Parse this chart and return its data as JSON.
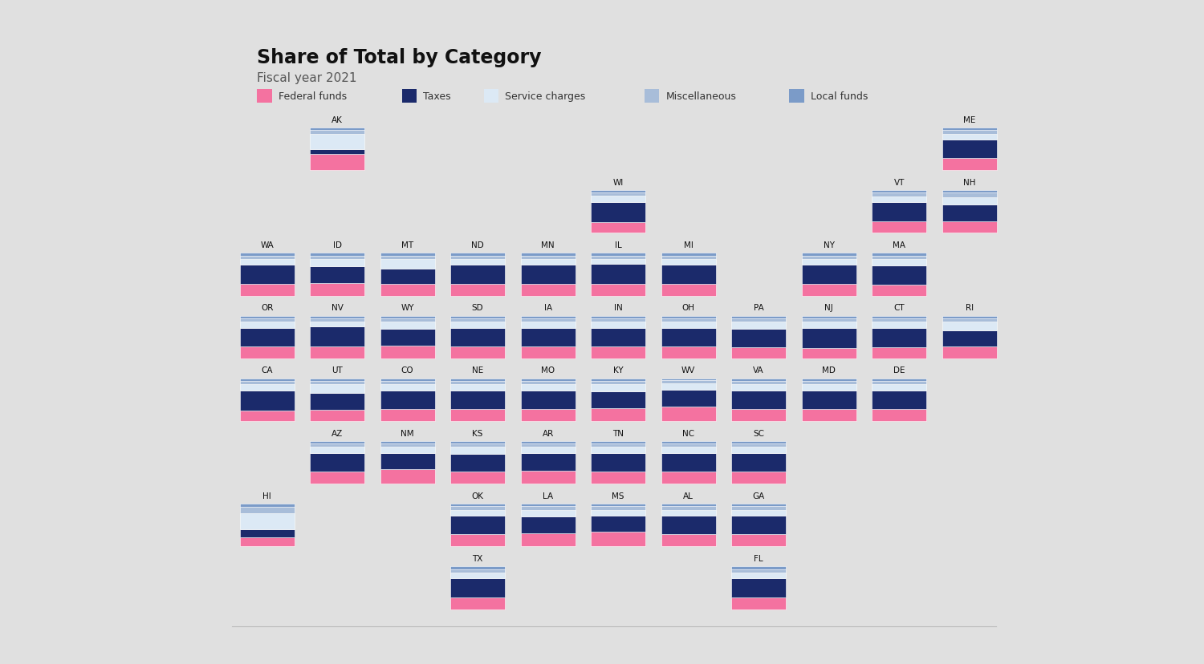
{
  "title": "Share of Total by Category",
  "subtitle": "Fiscal year 2021",
  "categories": [
    "Federal funds",
    "Taxes",
    "Service charges",
    "Miscellaneous",
    "Local funds"
  ],
  "cat_colors": [
    "#F472A0",
    "#1B2A6B",
    "#DCE9F5",
    "#A8BDD9",
    "#7B9BC8"
  ],
  "states": {
    "AK": {
      "col": 1,
      "row": 0,
      "values": [
        0.38,
        0.12,
        0.35,
        0.1,
        0.05
      ]
    },
    "ME": {
      "col": 10,
      "row": 0,
      "values": [
        0.28,
        0.44,
        0.14,
        0.08,
        0.06
      ]
    },
    "WI": {
      "col": 5,
      "row": 1,
      "values": [
        0.25,
        0.48,
        0.14,
        0.08,
        0.05
      ]
    },
    "VT": {
      "col": 9,
      "row": 1,
      "values": [
        0.28,
        0.44,
        0.14,
        0.08,
        0.06
      ]
    },
    "NH": {
      "col": 10,
      "row": 1,
      "values": [
        0.28,
        0.38,
        0.18,
        0.1,
        0.06
      ]
    },
    "WA": {
      "col": 0,
      "row": 2,
      "values": [
        0.28,
        0.44,
        0.14,
        0.08,
        0.06
      ]
    },
    "ID": {
      "col": 1,
      "row": 2,
      "values": [
        0.3,
        0.38,
        0.18,
        0.08,
        0.06
      ]
    },
    "MT": {
      "col": 2,
      "row": 2,
      "values": [
        0.28,
        0.36,
        0.22,
        0.08,
        0.06
      ]
    },
    "ND": {
      "col": 3,
      "row": 2,
      "values": [
        0.28,
        0.44,
        0.14,
        0.08,
        0.06
      ]
    },
    "MN": {
      "col": 4,
      "row": 2,
      "values": [
        0.28,
        0.44,
        0.14,
        0.08,
        0.06
      ]
    },
    "IL": {
      "col": 5,
      "row": 2,
      "values": [
        0.28,
        0.46,
        0.12,
        0.08,
        0.06
      ]
    },
    "MI": {
      "col": 6,
      "row": 2,
      "values": [
        0.28,
        0.44,
        0.14,
        0.08,
        0.06
      ]
    },
    "NY": {
      "col": 8,
      "row": 2,
      "values": [
        0.28,
        0.44,
        0.14,
        0.08,
        0.06
      ]
    },
    "MA": {
      "col": 9,
      "row": 2,
      "values": [
        0.26,
        0.44,
        0.16,
        0.08,
        0.06
      ]
    },
    "OR": {
      "col": 0,
      "row": 3,
      "values": [
        0.28,
        0.44,
        0.14,
        0.08,
        0.06
      ]
    },
    "NV": {
      "col": 1,
      "row": 3,
      "values": [
        0.28,
        0.46,
        0.12,
        0.08,
        0.06
      ]
    },
    "WY": {
      "col": 2,
      "row": 3,
      "values": [
        0.3,
        0.4,
        0.16,
        0.08,
        0.06
      ]
    },
    "SD": {
      "col": 3,
      "row": 3,
      "values": [
        0.28,
        0.44,
        0.14,
        0.08,
        0.06
      ]
    },
    "IA": {
      "col": 4,
      "row": 3,
      "values": [
        0.28,
        0.44,
        0.14,
        0.08,
        0.06
      ]
    },
    "IN": {
      "col": 5,
      "row": 3,
      "values": [
        0.28,
        0.44,
        0.14,
        0.08,
        0.06
      ]
    },
    "OH": {
      "col": 6,
      "row": 3,
      "values": [
        0.28,
        0.44,
        0.14,
        0.08,
        0.06
      ]
    },
    "PA": {
      "col": 7,
      "row": 3,
      "values": [
        0.26,
        0.44,
        0.16,
        0.08,
        0.06
      ]
    },
    "NJ": {
      "col": 8,
      "row": 3,
      "values": [
        0.24,
        0.48,
        0.14,
        0.08,
        0.06
      ]
    },
    "CT": {
      "col": 9,
      "row": 3,
      "values": [
        0.26,
        0.46,
        0.14,
        0.08,
        0.06
      ]
    },
    "RI": {
      "col": 10,
      "row": 3,
      "values": [
        0.28,
        0.38,
        0.2,
        0.08,
        0.06
      ]
    },
    "CA": {
      "col": 0,
      "row": 4,
      "values": [
        0.24,
        0.48,
        0.14,
        0.08,
        0.06
      ]
    },
    "UT": {
      "col": 1,
      "row": 4,
      "values": [
        0.26,
        0.4,
        0.2,
        0.08,
        0.06
      ]
    },
    "CO": {
      "col": 2,
      "row": 4,
      "values": [
        0.28,
        0.44,
        0.14,
        0.08,
        0.06
      ]
    },
    "NE": {
      "col": 3,
      "row": 4,
      "values": [
        0.28,
        0.44,
        0.14,
        0.08,
        0.06
      ]
    },
    "MO": {
      "col": 4,
      "row": 4,
      "values": [
        0.28,
        0.44,
        0.14,
        0.08,
        0.06
      ]
    },
    "KY": {
      "col": 5,
      "row": 4,
      "values": [
        0.3,
        0.4,
        0.16,
        0.08,
        0.06
      ]
    },
    "WV": {
      "col": 6,
      "row": 4,
      "values": [
        0.34,
        0.4,
        0.14,
        0.07,
        0.05
      ]
    },
    "VA": {
      "col": 7,
      "row": 4,
      "values": [
        0.28,
        0.44,
        0.14,
        0.08,
        0.06
      ]
    },
    "MD": {
      "col": 8,
      "row": 4,
      "values": [
        0.28,
        0.44,
        0.14,
        0.08,
        0.06
      ]
    },
    "DE": {
      "col": 9,
      "row": 4,
      "values": [
        0.28,
        0.44,
        0.14,
        0.08,
        0.06
      ]
    },
    "AZ": {
      "col": 1,
      "row": 5,
      "values": [
        0.28,
        0.44,
        0.14,
        0.08,
        0.06
      ]
    },
    "NM": {
      "col": 2,
      "row": 5,
      "values": [
        0.34,
        0.38,
        0.14,
        0.08,
        0.06
      ]
    },
    "KS": {
      "col": 3,
      "row": 5,
      "values": [
        0.28,
        0.42,
        0.16,
        0.08,
        0.06
      ]
    },
    "AR": {
      "col": 4,
      "row": 5,
      "values": [
        0.3,
        0.42,
        0.14,
        0.08,
        0.06
      ]
    },
    "TN": {
      "col": 5,
      "row": 5,
      "values": [
        0.28,
        0.44,
        0.14,
        0.08,
        0.06
      ]
    },
    "NC": {
      "col": 6,
      "row": 5,
      "values": [
        0.28,
        0.44,
        0.14,
        0.08,
        0.06
      ]
    },
    "SC": {
      "col": 7,
      "row": 5,
      "values": [
        0.28,
        0.44,
        0.14,
        0.08,
        0.06
      ]
    },
    "HI": {
      "col": 0,
      "row": 6,
      "values": [
        0.22,
        0.18,
        0.38,
        0.14,
        0.08
      ]
    },
    "OK": {
      "col": 3,
      "row": 6,
      "values": [
        0.28,
        0.44,
        0.14,
        0.08,
        0.06
      ]
    },
    "LA": {
      "col": 4,
      "row": 6,
      "values": [
        0.3,
        0.4,
        0.16,
        0.08,
        0.06
      ]
    },
    "MS": {
      "col": 5,
      "row": 6,
      "values": [
        0.34,
        0.38,
        0.14,
        0.08,
        0.06
      ]
    },
    "AL": {
      "col": 6,
      "row": 6,
      "values": [
        0.28,
        0.44,
        0.14,
        0.08,
        0.06
      ]
    },
    "GA": {
      "col": 7,
      "row": 6,
      "values": [
        0.28,
        0.44,
        0.14,
        0.08,
        0.06
      ]
    },
    "TX": {
      "col": 3,
      "row": 7,
      "values": [
        0.28,
        0.44,
        0.14,
        0.08,
        0.06
      ]
    },
    "FL": {
      "col": 7,
      "row": 7,
      "values": [
        0.28,
        0.44,
        0.14,
        0.08,
        0.06
      ]
    }
  },
  "outer_bg": "#E0E0E0",
  "panel_bg": "#FFFFFF",
  "n_cols": 11,
  "n_rows": 8
}
